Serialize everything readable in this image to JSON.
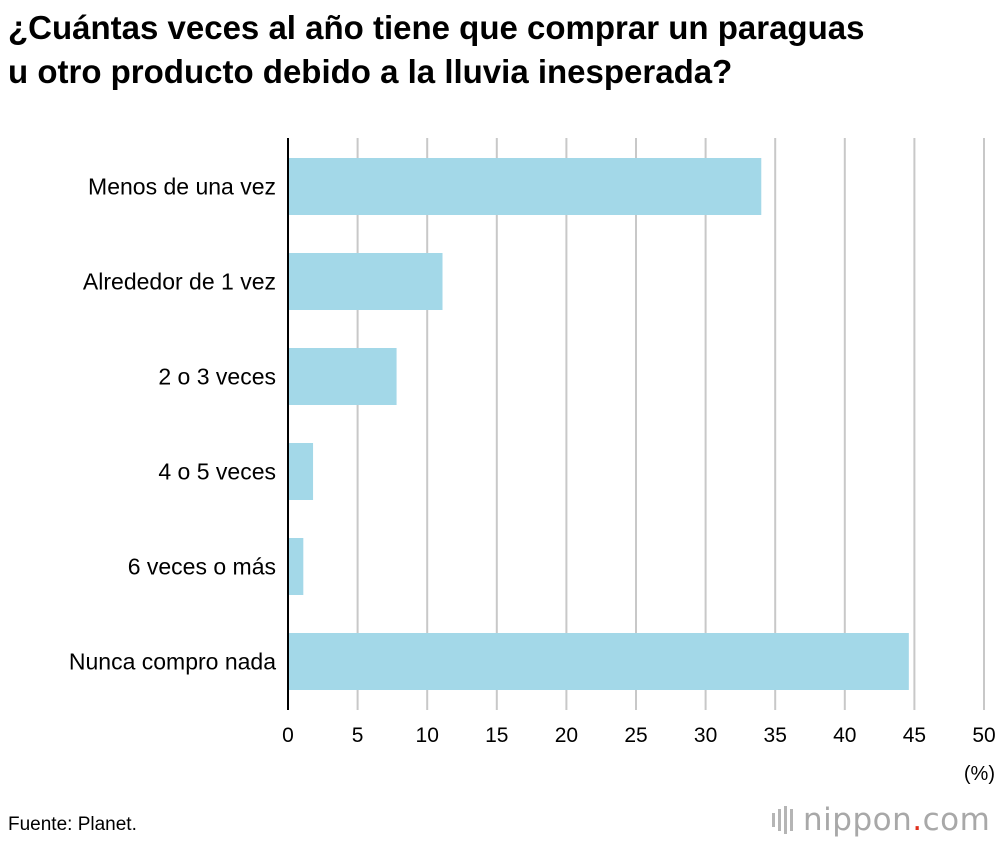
{
  "chart_data": {
    "type": "bar",
    "orientation": "horizontal",
    "title": "¿Cuántas veces al año tiene que comprar un paraguas u otro producto debido a la lluvia inesperada?",
    "title_lines": [
      "¿Cuántas veces al año tiene que comprar un paraguas",
      "u otro producto debido a la lluvia inesperada?"
    ],
    "categories": [
      "Menos de una vez",
      "Alrededor de 1 vez",
      "2 o 3 veces",
      "4 o 5 veces",
      "6 veces o más",
      "Nunca compro nada"
    ],
    "values": [
      34.0,
      11.1,
      7.8,
      1.8,
      1.1,
      44.6
    ],
    "xlim": [
      0,
      50
    ],
    "xticks": [
      0,
      5,
      10,
      15,
      20,
      25,
      30,
      35,
      40,
      45,
      50
    ],
    "xlabel": "(%)",
    "ylabel": "",
    "grid": true,
    "bar_color": "#a3d8e8",
    "grid_color": "#c8c8c8"
  },
  "footer": {
    "source": "Fuente: Planet.",
    "logo_main": "nippon",
    "logo_dot": ".",
    "logo_suffix": "com",
    "logo_dot_color": "#e0301e"
  }
}
